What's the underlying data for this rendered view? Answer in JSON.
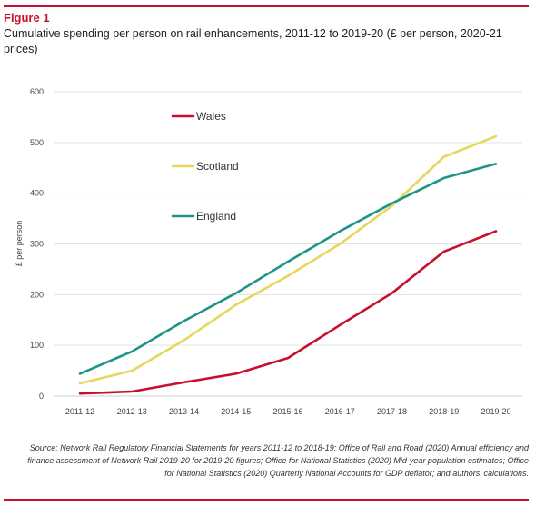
{
  "figure": {
    "label": "Figure 1",
    "title": "Cumulative spending per person on rail enhancements, 2011-12 to 2019-20 (£ per person, 2020-21 prices)",
    "source": "Source: Network Rail Regulatory Financial Statements for years 2011-12 to 2018-19; Office of Rail and Road (2020) Annual efficiency and finance assessment of Network Rail 2019-20 for 2019-20 figures; Office for National Statistics (2020) Mid-year population estimates; Office for National Statistics (2020) Quarterly National Accounts for GDP deflator; and authors' calculations."
  },
  "chart_data": {
    "type": "line",
    "title": "Cumulative spending per person on rail enhancements, 2011-12 to 2019-20 (£ per person, 2020-21 prices)",
    "xlabel": "",
    "ylabel": "£ per person",
    "categories": [
      "2011-12",
      "2012-13",
      "2013-14",
      "2014-15",
      "2015-16",
      "2016-17",
      "2017-18",
      "2018-19",
      "2019-20"
    ],
    "ylim": [
      0,
      600
    ],
    "yticks": [
      0,
      100,
      200,
      300,
      400,
      500,
      600
    ],
    "grid": true,
    "legend": "top-left",
    "series": [
      {
        "name": "Wales",
        "color": "#c8102e",
        "values": [
          5,
          9,
          27,
          44,
          75,
          140,
          203,
          285,
          325
        ]
      },
      {
        "name": "Scotland",
        "color": "#e6d75c",
        "values": [
          25,
          50,
          110,
          180,
          237,
          300,
          375,
          472,
          512
        ]
      },
      {
        "name": "England",
        "color": "#1f9486",
        "values": [
          44,
          88,
          148,
          203,
          265,
          325,
          380,
          430,
          458
        ]
      }
    ]
  }
}
